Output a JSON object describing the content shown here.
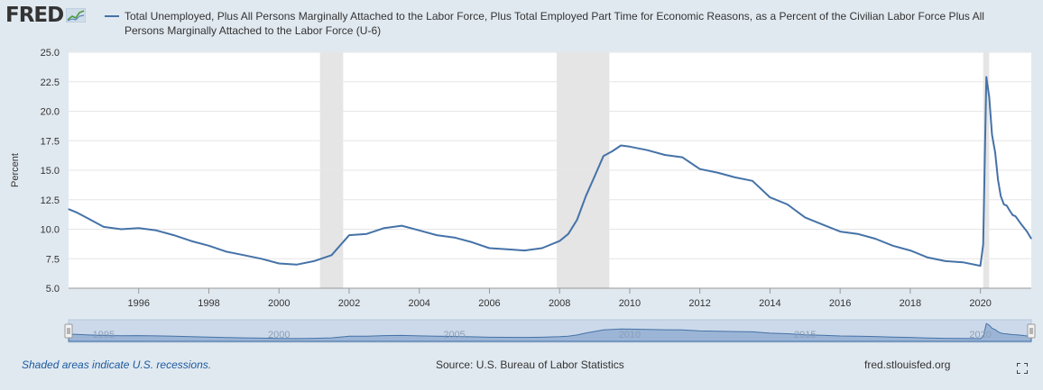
{
  "header": {
    "logo_text": "FRED",
    "logo_icon": "fred-graph-icon",
    "legend_label": "Total Unemployed, Plus All Persons Marginally Attached to the Labor Force, Plus Total Employed Part Time for Economic Reasons, as a Percent of the Civilian Labor Force Plus All Persons Marginally Attached to the Labor Force (U-6)"
  },
  "colors": {
    "series": "#4572a7",
    "recession": "#e5e5e5",
    "background": "#e1e9f0",
    "plot_bg": "#ffffff"
  },
  "footer": {
    "note": "Shaded areas indicate U.S. recessions.",
    "source": "Source: U.S. Bureau of Labor Statistics",
    "site": "fred.stlouisfed.org",
    "fullscreen_icon": "fullscreen-icon"
  },
  "chart_data": {
    "type": "line",
    "title": "Total Unemployed, Plus All Persons Marginally Attached to the Labor Force, Plus Total Employed Part Time for Economic Reasons, as a Percent of the Civilian Labor Force Plus All Persons Marginally Attached to the Labor Force (U-6)",
    "ylabel": "Percent",
    "xlabel": "",
    "xlim": [
      1994.0,
      2021.45
    ],
    "ylim": [
      5.0,
      25.0
    ],
    "yticks": [
      "5.0",
      "7.5",
      "10.0",
      "12.5",
      "15.0",
      "17.5",
      "20.0",
      "22.5",
      "25.0"
    ],
    "xticks": [
      "1996",
      "1998",
      "2000",
      "2002",
      "2004",
      "2006",
      "2008",
      "2010",
      "2012",
      "2014",
      "2016",
      "2018",
      "2020"
    ],
    "navigator_labels": [
      "1995",
      "2000",
      "2005",
      "2010",
      "2015",
      "2020"
    ],
    "grid": true,
    "legend": "top",
    "recessions": [
      [
        2001.17,
        2001.83
      ],
      [
        2007.92,
        2009.42
      ],
      [
        2020.08,
        2020.25
      ]
    ],
    "series": [
      {
        "name": "Total Unemployed, Plus All Persons Marginally Attached to the Labor Force, Plus Total Employed Part Time for Economic Reasons, as a Percent of the Civilian Labor Force Plus All Persons Marginally Attached to the Labor Force (U-6)",
        "x": [
          1994.0,
          1994.25,
          1994.5,
          1994.75,
          1995.0,
          1995.5,
          1996.0,
          1996.5,
          1997.0,
          1997.5,
          1998.0,
          1998.5,
          1999.0,
          1999.5,
          2000.0,
          2000.5,
          2001.0,
          2001.5,
          2002.0,
          2002.5,
          2003.0,
          2003.5,
          2004.0,
          2004.5,
          2005.0,
          2005.5,
          2006.0,
          2006.5,
          2007.0,
          2007.5,
          2008.0,
          2008.25,
          2008.5,
          2008.75,
          2009.0,
          2009.25,
          2009.5,
          2009.75,
          2010.0,
          2010.5,
          2011.0,
          2011.5,
          2012.0,
          2012.5,
          2013.0,
          2013.5,
          2014.0,
          2014.5,
          2015.0,
          2015.5,
          2016.0,
          2016.5,
          2017.0,
          2017.5,
          2018.0,
          2018.5,
          2019.0,
          2019.5,
          2020.0,
          2020.08,
          2020.17,
          2020.25,
          2020.33,
          2020.42,
          2020.5,
          2020.58,
          2020.67,
          2020.75,
          2020.83,
          2020.92,
          2021.0,
          2021.17,
          2021.33,
          2021.45
        ],
        "values": [
          11.7,
          11.4,
          11.0,
          10.6,
          10.2,
          10.0,
          10.1,
          9.9,
          9.5,
          9.0,
          8.6,
          8.1,
          7.8,
          7.5,
          7.1,
          7.0,
          7.3,
          7.8,
          9.5,
          9.6,
          10.1,
          10.3,
          9.9,
          9.5,
          9.3,
          8.9,
          8.4,
          8.3,
          8.2,
          8.4,
          9.0,
          9.6,
          10.8,
          12.8,
          14.5,
          16.2,
          16.6,
          17.1,
          17.0,
          16.7,
          16.3,
          16.1,
          15.1,
          14.8,
          14.4,
          14.1,
          12.7,
          12.1,
          11.0,
          10.4,
          9.8,
          9.6,
          9.2,
          8.6,
          8.2,
          7.6,
          7.3,
          7.2,
          6.9,
          8.7,
          22.9,
          21.2,
          18.0,
          16.5,
          14.2,
          12.8,
          12.1,
          12.0,
          11.6,
          11.2,
          11.1,
          10.4,
          9.8,
          9.2
        ]
      }
    ]
  }
}
